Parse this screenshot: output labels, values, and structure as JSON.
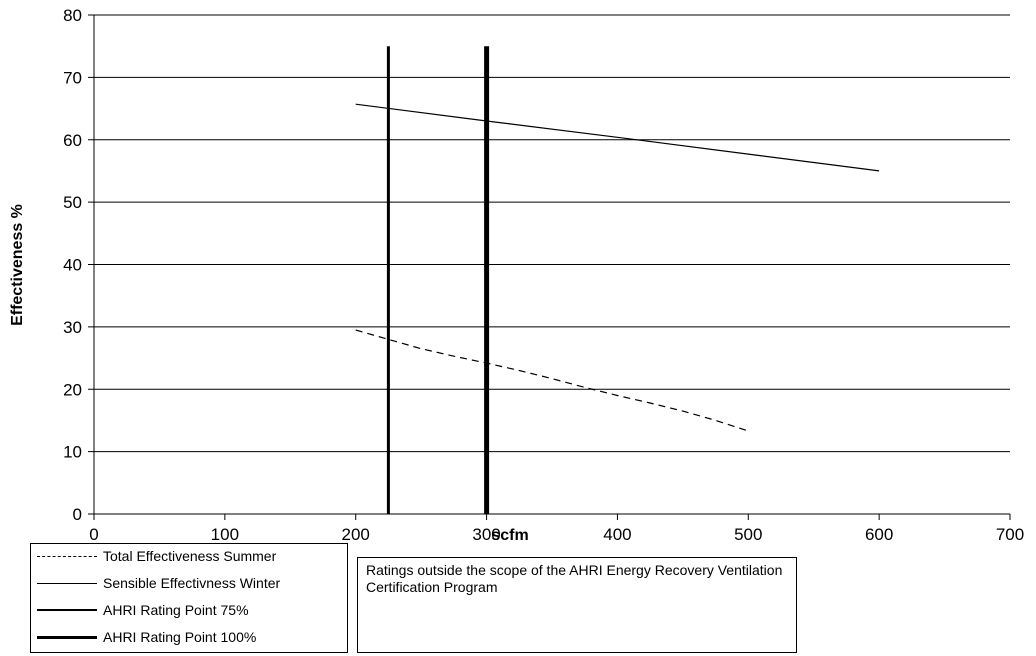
{
  "chart_data": {
    "type": "line",
    "title": "",
    "xlabel": "scfm",
    "ylabel": "Effectiveness %",
    "xlim": [
      0,
      700
    ],
    "ylim": [
      0,
      80
    ],
    "xticks": [
      0,
      100,
      200,
      300,
      400,
      500,
      600,
      700
    ],
    "yticks": [
      0,
      10,
      20,
      30,
      40,
      50,
      60,
      70,
      80
    ],
    "grid": "horizontal",
    "series": [
      {
        "name": "Total Effectiveness Summer",
        "style": "dashed",
        "color": "#000000",
        "x": [
          200,
          225,
          250,
          275,
          300,
          325,
          350,
          375,
          400,
          425,
          450,
          475,
          500
        ],
        "y": [
          29.5,
          28,
          26.5,
          25.3,
          24.2,
          23,
          21.7,
          20.3,
          19,
          17.8,
          16.5,
          15,
          13.3
        ]
      },
      {
        "name": "Sensible Effectivness Winter",
        "style": "solid",
        "color": "#000000",
        "x": [
          200,
          300,
          400,
          500,
          600
        ],
        "y": [
          65.7,
          63,
          60.4,
          57.7,
          55
        ]
      },
      {
        "name": "AHRI Rating Point 75%",
        "style": "vertical",
        "color": "#000000",
        "x": [
          225,
          225
        ],
        "y": [
          0,
          75
        ]
      },
      {
        "name": "AHRI Rating Point 100%",
        "style": "vertical-thick",
        "color": "#000000",
        "x": [
          300,
          300
        ],
        "y": [
          0,
          75
        ]
      }
    ],
    "legend_position": "bottom-left",
    "note": "Ratings outside the scope of the AHRI Energy Recovery Ventilation Certification Program"
  }
}
